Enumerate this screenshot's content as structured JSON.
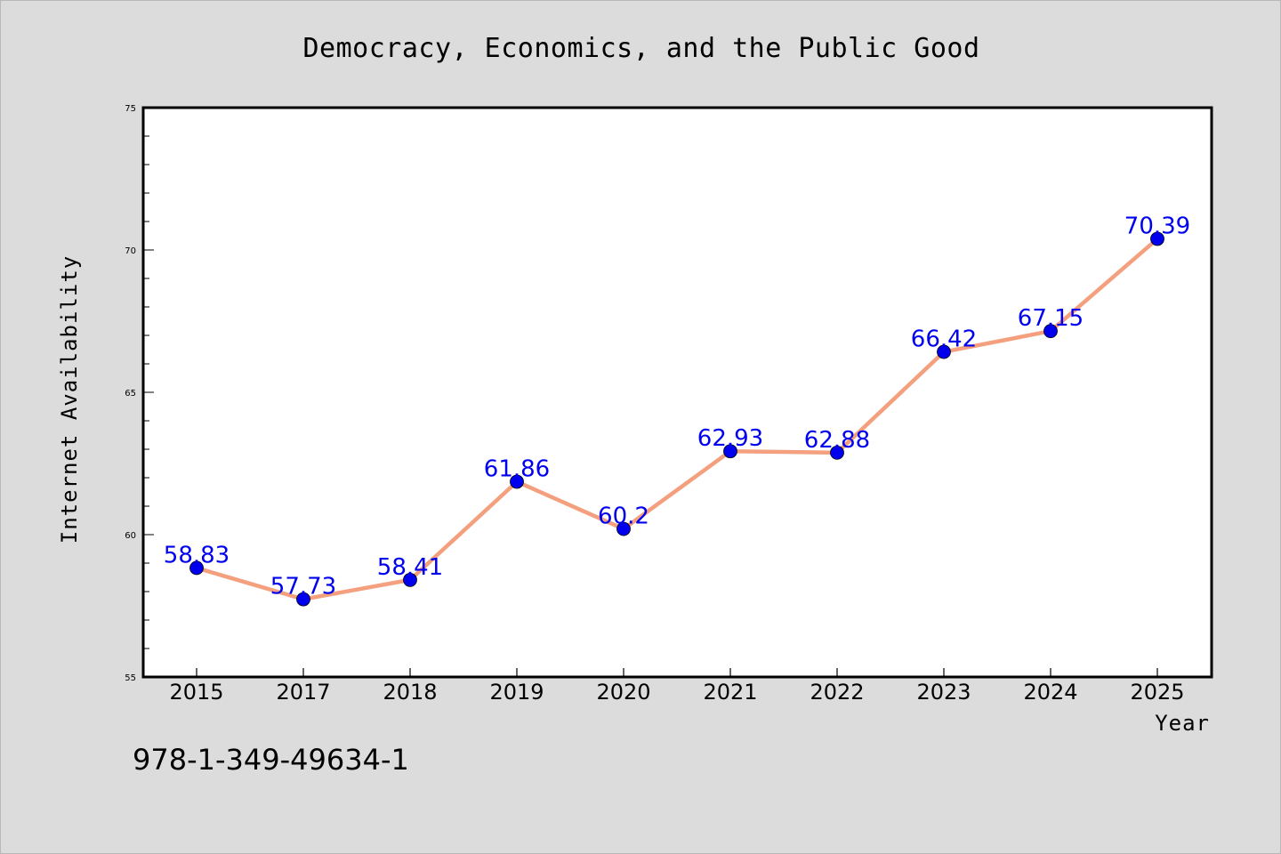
{
  "chart_data": {
    "type": "line",
    "title": "Democracy, Economics, and the Public Good",
    "xlabel": "Year",
    "ylabel": "Internet Availability",
    "categories": [
      "2015",
      "2017",
      "2018",
      "2019",
      "2020",
      "2021",
      "2022",
      "2023",
      "2024",
      "2025"
    ],
    "values": [
      58.83,
      57.73,
      58.41,
      61.86,
      60.2,
      62.93,
      62.88,
      66.42,
      67.15,
      70.39
    ],
    "data_labels": [
      "58.83",
      "57.73",
      "58.41",
      "61.86",
      "60.2",
      "62.93",
      "62.88",
      "66.42",
      "67.15",
      "70.39"
    ],
    "ylim": [
      55,
      75
    ],
    "yticks": [
      55,
      60,
      65,
      70,
      75
    ],
    "grid": false,
    "legend": "none"
  },
  "annotation": "978-1-349-49634-1",
  "colors": {
    "background": "#dcdcdc",
    "plot_area": "#ffffff",
    "line": "#f4a07e",
    "marker": "#0000ee",
    "data_label": "#0000ee"
  }
}
